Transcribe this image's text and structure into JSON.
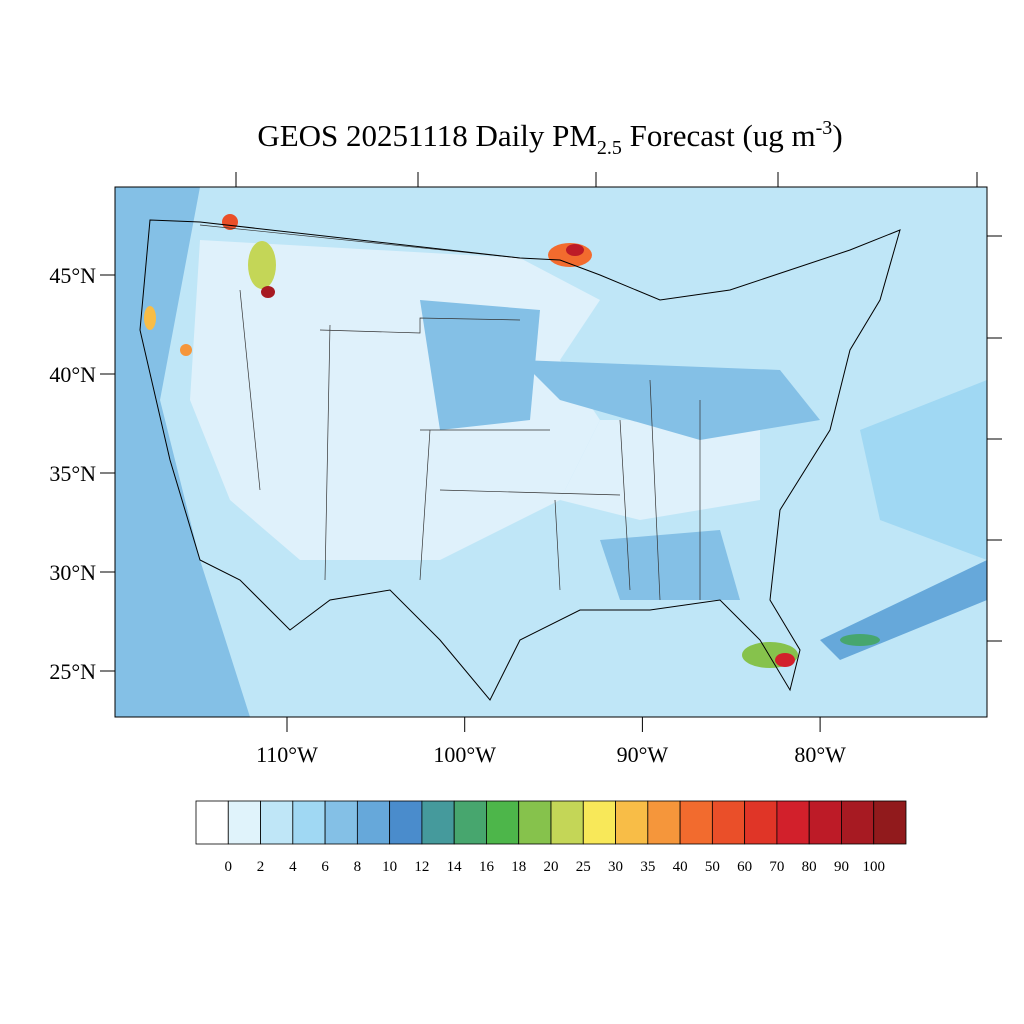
{
  "map": {
    "title": {
      "main": "GEOS 20251118 Daily PM",
      "sub": "2.5",
      "rest": " Forecast (ug m",
      "sup": "-3",
      "end": ")"
    },
    "lat_ticks": [
      {
        "value": 45,
        "label": "45°N"
      },
      {
        "value": 40,
        "label": "40°N"
      },
      {
        "value": 35,
        "label": "35°N"
      },
      {
        "value": 30,
        "label": "30°N"
      },
      {
        "value": 25,
        "label": "25°N"
      }
    ],
    "lon_ticks": [
      {
        "value": -110,
        "label": "110°W"
      },
      {
        "value": -100,
        "label": "100°W"
      },
      {
        "value": -90,
        "label": "90°W"
      },
      {
        "value": -80,
        "label": "80°W"
      }
    ],
    "colorbar": {
      "colors": [
        "#ffffff",
        "#e0f3fb",
        "#bfe6f7",
        "#a0d8f3",
        "#84c0e6",
        "#66a8da",
        "#4a8ccc",
        "#459a9c",
        "#47a66e",
        "#4db64a",
        "#86c24c",
        "#c4d657",
        "#f8e859",
        "#f8bd47",
        "#f5963b",
        "#f26b2e",
        "#ea4f29",
        "#e03527",
        "#d2202b",
        "#bd1b27",
        "#a71a22",
        "#911a1c"
      ],
      "labels": [
        0,
        2,
        4,
        6,
        8,
        10,
        12,
        14,
        16,
        18,
        20,
        25,
        30,
        35,
        40,
        50,
        60,
        70,
        80,
        90,
        100
      ]
    }
  }
}
